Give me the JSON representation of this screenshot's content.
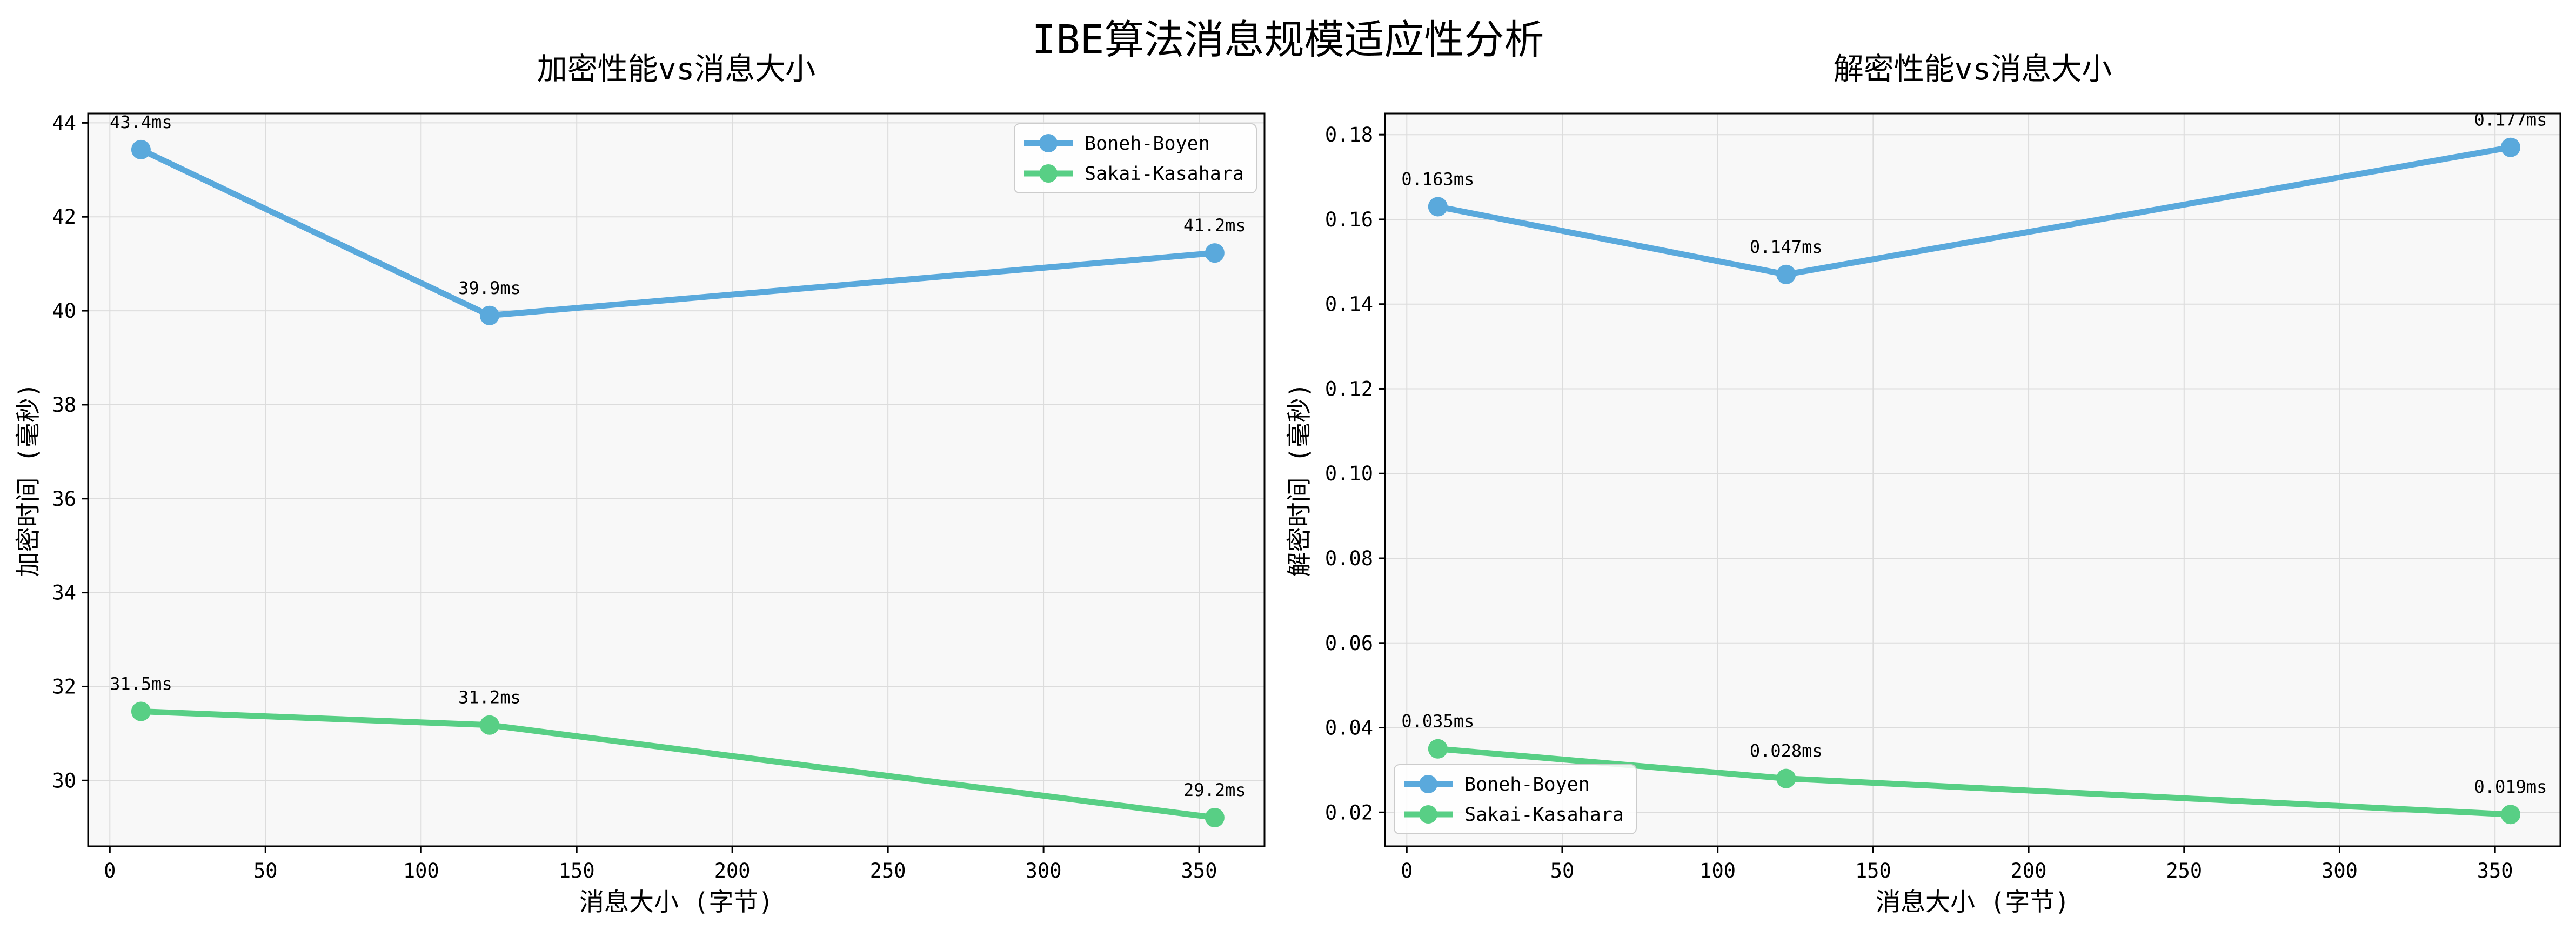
{
  "figure": {
    "suptitle": "IBE算法消息规模适应性分析"
  },
  "colors": {
    "boneh": "#5aa9dc",
    "sakai": "#58cf85",
    "plot_bg": "#f8f8f8",
    "grid": "#dcdcdc"
  },
  "chart_data": [
    {
      "type": "line",
      "title": "加密性能vs消息大小",
      "xlabel": "消息大小 (字节)",
      "ylabel": "加密时间 (毫秒)",
      "xlim": [
        -7,
        371
      ],
      "ylim": [
        28.6,
        44.2
      ],
      "xticks": [
        0,
        50,
        100,
        150,
        200,
        250,
        300,
        350
      ],
      "yticks": [
        30,
        32,
        34,
        36,
        38,
        40,
        42,
        44
      ],
      "grid": true,
      "legend_position": "top-right",
      "x": [
        10,
        122,
        355
      ],
      "series": [
        {
          "name": "Boneh-Boyen",
          "values": [
            43.43,
            39.9,
            41.23
          ],
          "labels": [
            "43.4ms",
            "39.9ms",
            "41.2ms"
          ]
        },
        {
          "name": "Sakai-Kasahara",
          "values": [
            31.47,
            31.18,
            29.21
          ],
          "labels": [
            "31.5ms",
            "31.2ms",
            "29.2ms"
          ]
        }
      ]
    },
    {
      "type": "line",
      "title": "解密性能vs消息大小",
      "xlabel": "消息大小 (字节)",
      "ylabel": "解密时间 (毫秒)",
      "xlim": [
        -7,
        371
      ],
      "ylim": [
        0.012,
        0.185
      ],
      "xticks": [
        0,
        50,
        100,
        150,
        200,
        250,
        300,
        350
      ],
      "yticks": [
        0.02,
        0.04,
        0.06,
        0.08,
        0.1,
        0.12,
        0.14,
        0.16,
        0.18
      ],
      "ytick_labels": [
        "0.02",
        "0.04",
        "0.06",
        "0.08",
        "0.10",
        "0.12",
        "0.14",
        "0.16",
        "0.18"
      ],
      "grid": true,
      "legend_position": "bottom-left",
      "x": [
        10,
        122,
        355
      ],
      "series": [
        {
          "name": "Boneh-Boyen",
          "values": [
            0.163,
            0.147,
            0.177
          ],
          "labels": [
            "0.163ms",
            "0.147ms",
            "0.177ms"
          ]
        },
        {
          "name": "Sakai-Kasahara",
          "values": [
            0.035,
            0.028,
            0.0195
          ],
          "labels": [
            "0.035ms",
            "0.028ms",
            "0.019ms"
          ]
        }
      ]
    }
  ]
}
